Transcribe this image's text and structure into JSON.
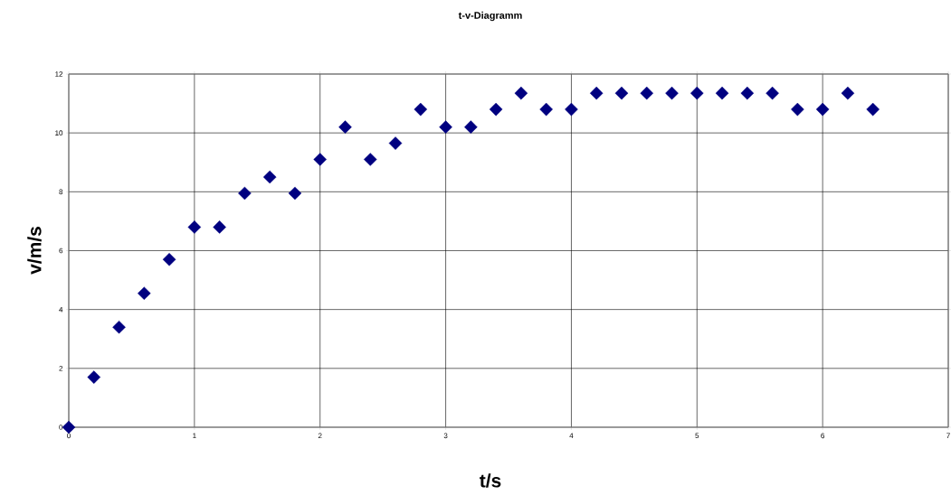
{
  "chart_data": {
    "type": "scatter",
    "title": "t-v-Diagramm",
    "xlabel": "t/s",
    "ylabel": "v/m/s",
    "x": [
      0,
      0.2,
      0.4,
      0.6,
      0.8,
      1.0,
      1.2,
      1.4,
      1.6,
      1.8,
      2.0,
      2.2,
      2.4,
      2.6,
      2.8,
      3.0,
      3.2,
      3.4,
      3.6,
      3.8,
      4.0,
      4.2,
      4.4,
      4.6,
      4.8,
      5.0,
      5.2,
      5.4,
      5.6,
      5.8,
      6.0,
      6.2,
      6.4
    ],
    "series": [
      {
        "color": "#000080",
        "values": [
          0,
          1.7,
          3.4,
          4.55,
          5.7,
          6.8,
          6.8,
          7.95,
          8.5,
          7.95,
          9.1,
          10.2,
          9.1,
          9.65,
          10.8,
          10.2,
          10.2,
          10.8,
          11.35,
          10.8,
          10.8,
          11.35,
          11.35,
          11.35,
          11.35,
          11.35,
          11.35,
          11.35,
          11.35,
          10.8,
          10.8,
          11.35,
          10.8
        ]
      }
    ],
    "xlim": [
      0,
      7
    ],
    "ylim": [
      0,
      12
    ],
    "xticks": [
      0,
      1,
      2,
      3,
      4,
      5,
      6,
      7
    ],
    "yticks": [
      0,
      2,
      4,
      6,
      8,
      10,
      12
    ],
    "grid": true,
    "marker": "diamond"
  }
}
